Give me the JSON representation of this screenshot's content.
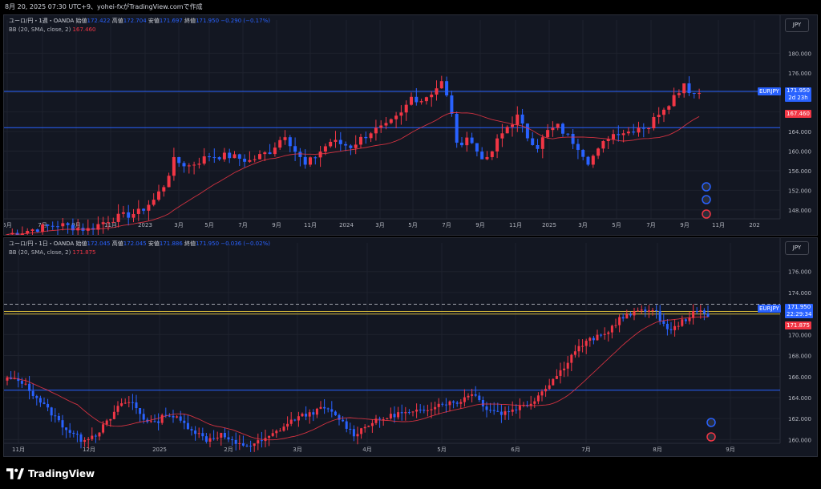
{
  "header": {
    "text": "8月 20, 2025 07:30 UTC+9、yohei-fxがTradingView.comで作成"
  },
  "footer": {
    "brand": "TradingView"
  },
  "colors": {
    "bg": "#131722",
    "up": "#f23645",
    "down": "#2962ff",
    "bb": "#f23645",
    "hline": "#2962ff",
    "yellow": "#d4b83a"
  },
  "chart_data": [
    {
      "type": "candlestick",
      "symbol_line": "ユーロ/円・1週・OANDA",
      "ohlc_labels": [
        "始値",
        "高値",
        "安値",
        "終値"
      ],
      "ohlc_values": [
        "172.422",
        "172.704",
        "171.697",
        "171.950"
      ],
      "change": "−0.290 (−0.17%)",
      "indicator": "BB (20, SMA, close, 2)",
      "indicator_value": "167.460",
      "currency": "JPY",
      "price_tag": {
        "symbol": "EURJPY",
        "price": "171.950",
        "countdown": "2d 23h",
        "bb": "167.460"
      },
      "y_ticks": [
        148,
        152,
        156,
        160,
        164,
        168,
        172,
        176,
        180
      ],
      "y_tick_labels": [
        "148.000",
        "152.000",
        "156.000",
        "160.000",
        "164.000",
        "",
        "",
        "176.000",
        "180.000"
      ],
      "ylim": [
        146.5,
        183.5
      ],
      "x_ticks": [
        "5月",
        "7月",
        "9月",
        "11月",
        "2023",
        "3月",
        "5月",
        "7月",
        "9月",
        "11月",
        "2024",
        "3月",
        "5月",
        "7月",
        "9月",
        "11月",
        "2025",
        "3月",
        "5月",
        "7月",
        "9月",
        "11月",
        "202"
      ],
      "hlines": [
        172.2,
        164.8
      ],
      "anchors": [
        [
          0,
          143
        ],
        [
          10,
          145
        ],
        [
          16,
          144
        ],
        [
          20,
          146
        ],
        [
          26,
          147.5
        ],
        [
          29,
          150
        ],
        [
          31,
          153
        ],
        [
          33,
          158
        ],
        [
          36,
          157
        ],
        [
          40,
          159
        ],
        [
          44,
          159
        ],
        [
          48,
          158
        ],
        [
          52,
          160
        ],
        [
          55,
          163.5
        ],
        [
          57,
          160
        ],
        [
          59,
          157
        ],
        [
          61,
          159
        ],
        [
          64,
          162
        ],
        [
          68,
          161
        ],
        [
          72,
          164
        ],
        [
          75,
          165
        ],
        [
          78,
          167.5
        ],
        [
          80,
          171
        ],
        [
          82,
          170.5
        ],
        [
          84,
          172
        ],
        [
          86,
          174
        ],
        [
          88,
          168
        ],
        [
          89,
          161
        ],
        [
          91,
          163
        ],
        [
          93,
          160
        ],
        [
          95,
          158
        ],
        [
          97,
          162
        ],
        [
          99,
          165
        ],
        [
          101,
          167
        ],
        [
          103,
          163
        ],
        [
          105,
          161
        ],
        [
          107,
          164
        ],
        [
          109,
          165
        ],
        [
          111,
          163
        ],
        [
          113,
          161
        ],
        [
          115,
          158
        ],
        [
          117,
          160
        ],
        [
          119,
          163
        ],
        [
          121,
          164
        ],
        [
          123,
          164
        ],
        [
          125,
          165
        ],
        [
          127,
          165
        ],
        [
          129,
          168
        ],
        [
          131,
          170
        ],
        [
          133,
          172.5
        ],
        [
          134,
          174
        ],
        [
          135,
          172.5
        ],
        [
          136,
          171.8
        ],
        [
          137,
          172
        ]
      ]
    },
    {
      "type": "candlestick",
      "symbol_line": "ユーロ/円・1日・OANDA",
      "ohlc_labels": [
        "始値",
        "高値",
        "安値",
        "終値"
      ],
      "ohlc_values": [
        "172.045",
        "172.045",
        "171.886",
        "171.950"
      ],
      "change": "−0.036 (−0.02%)",
      "indicator": "BB (20, SMA, close, 2)",
      "indicator_value": "171.875",
      "currency": "JPY",
      "price_tag": {
        "symbol": "EURJPY",
        "price": "171.950",
        "countdown": "22:29:34",
        "bb": "171.875"
      },
      "y_ticks": [
        160,
        162,
        164,
        166,
        168,
        170,
        172,
        174,
        176
      ],
      "y_tick_labels": [
        "160.000",
        "162.000",
        "164.000",
        "166.000",
        "168.000",
        "170.000",
        "",
        "174.000",
        "176.000"
      ],
      "ylim": [
        159.8,
        177.2
      ],
      "x_ticks": [
        "11月",
        "12月",
        "2025",
        "2月",
        "3月",
        "4月",
        "5月",
        "6月",
        "7月",
        "8月",
        "9月"
      ],
      "hlines": [
        172.2,
        171.95,
        164.7
      ],
      "dashed_line": 172.9,
      "anchors": [
        [
          0,
          165.8
        ],
        [
          4,
          165.5
        ],
        [
          8,
          164
        ],
        [
          12,
          162.5
        ],
        [
          16,
          161
        ],
        [
          20,
          160
        ],
        [
          24,
          160.5
        ],
        [
          28,
          162
        ],
        [
          31,
          163.5
        ],
        [
          34,
          163.5
        ],
        [
          37,
          162
        ],
        [
          40,
          161.5
        ],
        [
          43,
          162.5
        ],
        [
          46,
          162
        ],
        [
          50,
          161
        ],
        [
          54,
          160
        ],
        [
          58,
          160.5
        ],
        [
          62,
          159.5
        ],
        [
          66,
          159.5
        ],
        [
          70,
          160
        ],
        [
          74,
          161
        ],
        [
          78,
          162
        ],
        [
          82,
          162.5
        ],
        [
          86,
          163
        ],
        [
          90,
          162
        ],
        [
          94,
          160.5
        ],
        [
          98,
          161.5
        ],
        [
          102,
          162
        ],
        [
          106,
          162.5
        ],
        [
          110,
          162.5
        ],
        [
          114,
          163
        ],
        [
          118,
          163.5
        ],
        [
          122,
          163.5
        ],
        [
          126,
          164.5
        ],
        [
          130,
          163
        ],
        [
          134,
          162.5
        ],
        [
          138,
          163
        ],
        [
          142,
          163.5
        ],
        [
          146,
          165
        ],
        [
          150,
          166.5
        ],
        [
          154,
          168.5
        ],
        [
          158,
          169.5
        ],
        [
          162,
          170
        ],
        [
          166,
          171.5
        ],
        [
          170,
          172
        ],
        [
          172,
          172.5
        ],
        [
          174,
          172.3
        ],
        [
          176,
          172
        ],
        [
          178,
          171
        ],
        [
          180,
          170.3
        ],
        [
          182,
          171
        ],
        [
          184,
          171.5
        ],
        [
          186,
          172
        ],
        [
          188,
          172.2
        ],
        [
          190,
          171.9
        ]
      ]
    }
  ]
}
